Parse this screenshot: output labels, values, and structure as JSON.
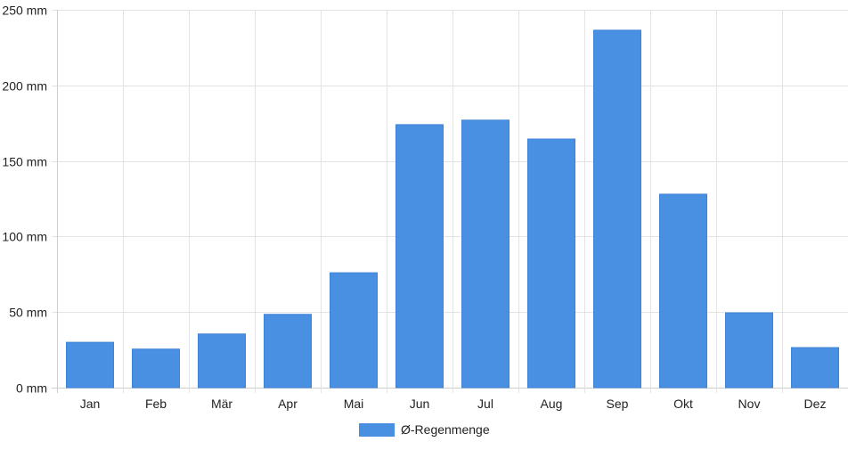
{
  "chart_data": {
    "type": "bar",
    "categories": [
      "Jan",
      "Feb",
      "Mär",
      "Apr",
      "Mai",
      "Jun",
      "Jul",
      "Aug",
      "Sep",
      "Okt",
      "Nov",
      "Dez"
    ],
    "series": [
      {
        "name": "Ø-Regenmenge",
        "values": [
          30,
          25.5,
          35.5,
          48.5,
          76,
          174,
          177,
          164.5,
          236.5,
          128,
          49.5,
          26.5
        ],
        "color": "#4a90e2"
      }
    ],
    "y_ticks": [
      "0 mm",
      "50 mm",
      "100 mm",
      "150 mm",
      "200 mm",
      "250 mm"
    ],
    "ylim": [
      0,
      250
    ],
    "grid": true,
    "legend_position": "bottom-center"
  }
}
